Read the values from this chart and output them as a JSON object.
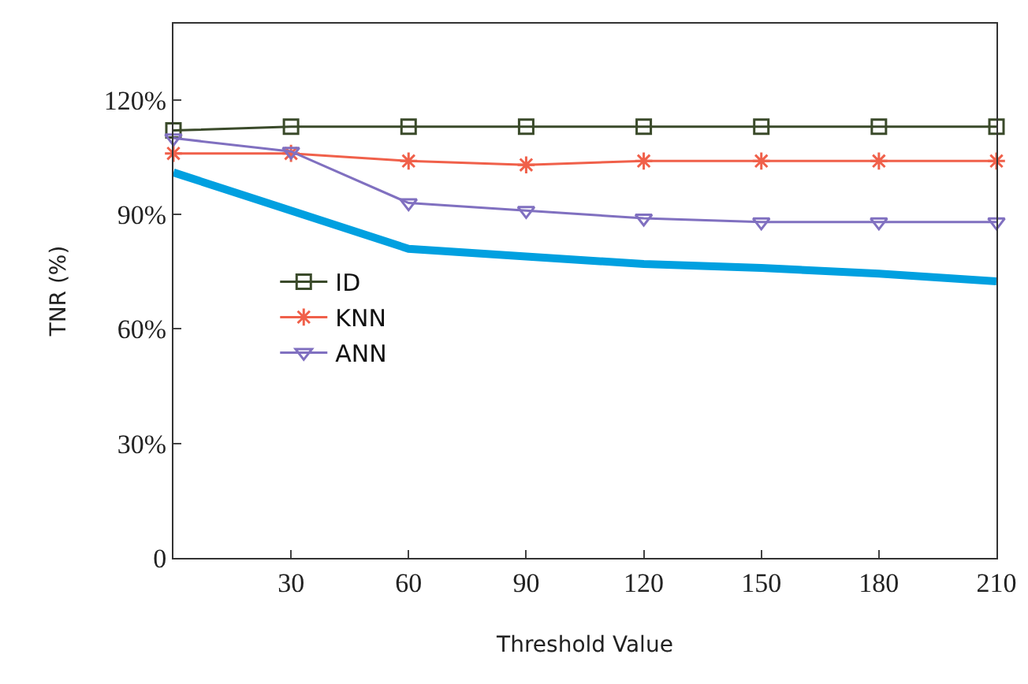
{
  "chart_data": {
    "type": "line",
    "xlabel": "Threshold Value",
    "ylabel": "TNR (%)",
    "x": [
      0,
      30,
      60,
      90,
      120,
      150,
      180,
      210
    ],
    "xlim": [
      0,
      210
    ],
    "xticks": [
      30,
      60,
      90,
      120,
      150,
      180,
      210
    ],
    "ylim": [
      0,
      140
    ],
    "yticks": [
      0,
      {
        "value": 30,
        "label": "30%"
      },
      {
        "value": 60,
        "label": "60%"
      },
      {
        "value": 90,
        "label": "90%"
      },
      {
        "value": 120,
        "label": "120%"
      }
    ],
    "grid": false,
    "legend": "left",
    "line_style": "solid",
    "series": [
      {
        "name": "ID",
        "color": "#3a4a2a",
        "marker": "square",
        "values": [
          112,
          113,
          113,
          113,
          113,
          113,
          113,
          113
        ]
      },
      {
        "name": "KNN",
        "color": "#f0604a",
        "marker": "cross",
        "values": [
          106,
          106,
          104,
          103,
          104,
          104,
          104,
          104
        ]
      },
      {
        "name": "ANN",
        "color": "#8070c0",
        "marker": "triangle",
        "values": [
          110,
          106.5,
          93,
          91,
          89,
          88,
          88,
          88
        ]
      },
      {
        "color": "#00a0e0",
        "marker": "none",
        "x": [
          0,
          60,
          90,
          120,
          150,
          180,
          210
        ],
        "values": [
          101,
          81,
          79,
          77,
          76,
          74.5,
          72.5
        ]
      }
    ]
  }
}
